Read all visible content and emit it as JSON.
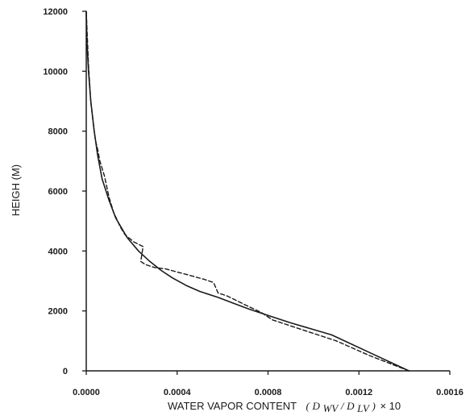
{
  "chart_data": {
    "type": "line",
    "title": "",
    "xlabel": "WATER VAPOR CONTENT",
    "xlabel_formula": {
      "open": "(",
      "num": "D",
      "num_sub": "WV",
      "slash": "/",
      "den": "D",
      "den_sub": "LV",
      "close": ")",
      "factor": "× 10"
    },
    "ylabel": "HEIGH (M)",
    "xlim": [
      0,
      0.0016
    ],
    "ylim": [
      0,
      12000
    ],
    "x_ticks": [
      0,
      0.0004,
      0.0008,
      0.0012,
      0.0016
    ],
    "x_tick_labels": [
      "0.0000",
      "0.0004",
      "0.0008",
      "0.0012",
      "0.0016"
    ],
    "y_ticks": [
      0,
      2000,
      4000,
      6000,
      8000,
      10000,
      12000
    ],
    "y_tick_labels": [
      "0",
      "2000",
      "4000",
      "6000",
      "8000",
      "10000",
      "12000"
    ],
    "grid": false,
    "legend": "none",
    "series": [
      {
        "style": "solid",
        "color": "#1a1a1a",
        "x": [
          0.00142,
          0.00125,
          0.00108,
          0.0009,
          0.0008,
          0.00072,
          0.00065,
          0.00058,
          0.0005,
          0.00044,
          0.00038,
          0.00033,
          0.00028,
          0.00023,
          0.00018,
          0.00013,
          0.0001,
          7e-05,
          5e-05,
          3.5e-05,
          2e-05,
          1e-05,
          3e-06,
          0.0
        ],
        "y": [
          0,
          600,
          1200,
          1600,
          1850,
          2050,
          2250,
          2450,
          2650,
          2850,
          3100,
          3350,
          3650,
          4000,
          4450,
          5100,
          5700,
          6400,
          7200,
          8000,
          9000,
          10000,
          11000,
          12000
        ]
      },
      {
        "style": "dashed",
        "color": "#1a1a1a",
        "x": [
          0.00142,
          0.00125,
          0.0011,
          0.00098,
          0.0009,
          0.00082,
          0.00077,
          0.0007,
          0.00062,
          0.00058,
          0.00056,
          0.00052,
          0.00045,
          0.0004,
          0.00035,
          0.0003,
          0.00026,
          0.00024,
          0.00025,
          0.00021,
          0.00017,
          0.00015,
          0.00012,
          0.0001,
          8e-05,
          6e-05,
          5e-05,
          4e-05,
          3e-05,
          2e-05,
          1e-05,
          0.0
        ],
        "y": [
          0,
          500,
          1000,
          1300,
          1500,
          1700,
          1950,
          2200,
          2500,
          2600,
          2950,
          3050,
          3200,
          3300,
          3400,
          3450,
          3550,
          3650,
          4150,
          4300,
          4550,
          4800,
          5300,
          5800,
          6500,
          7000,
          7400,
          7700,
          8300,
          9000,
          10200,
          12000
        ]
      }
    ]
  }
}
